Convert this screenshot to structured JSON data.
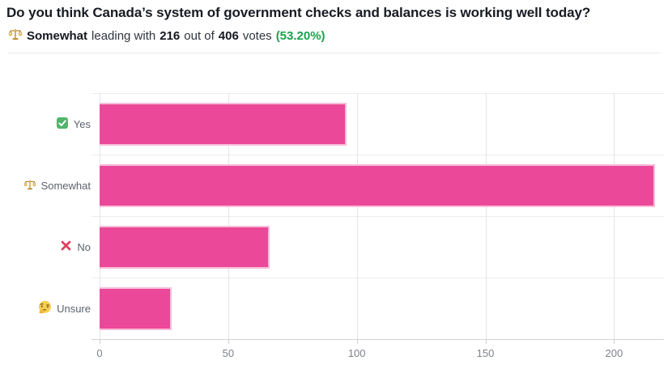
{
  "header": {
    "title": "Do you think Canada’s system of government checks and balances is working well today?",
    "subtitle": {
      "icon": "balance-scale-emoji",
      "leader": "Somewhat",
      "text_leading": "leading with",
      "votes": "216",
      "text_out_of": "out of",
      "total": "406",
      "text_votes": "votes",
      "percent": "(53.20%)",
      "percent_color": "#17a34a"
    }
  },
  "chart_data": {
    "type": "bar",
    "orientation": "horizontal",
    "title": "Do you think Canada’s system of government checks and balances is working well today?",
    "categories": [
      "Yes",
      "Somewhat",
      "No",
      "Unsure"
    ],
    "category_icons": [
      "check-mark-emoji",
      "balance-scale-emoji",
      "cross-mark-emoji",
      "thinking-face-emoji"
    ],
    "values": [
      96,
      216,
      66,
      28
    ],
    "total_votes": 406,
    "leading_category": "Somewhat",
    "leading_percent": "53.20%",
    "x_ticks": [
      0,
      50,
      100,
      150,
      200
    ],
    "xlim": [
      0,
      219.4
    ],
    "grid": true,
    "legend": false,
    "bar_color": "#ec4899",
    "bar_border_color": "#f8bcd9"
  }
}
